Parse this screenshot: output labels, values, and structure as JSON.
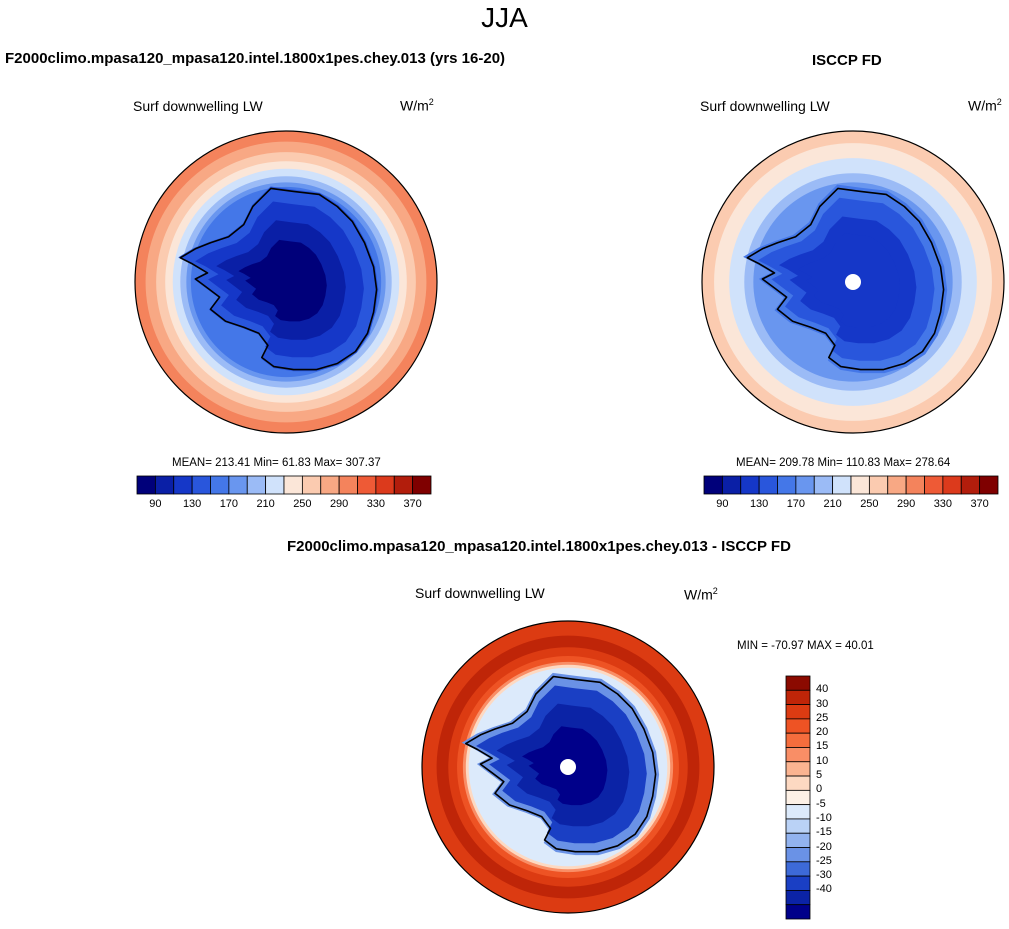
{
  "figure": {
    "title": "JJA",
    "units_base": "W/m",
    "units_sup": "2"
  },
  "chart_data": [
    {
      "type": "heatmap",
      "projection": "south polar stereographic",
      "case_title": "F2000climo.mpasa120_mpasa120.intel.1800x1pes.chey.013 (yrs 16-20)",
      "variable": "Surf downwelling LW",
      "units": "W/m2",
      "stats": {
        "mean": 213.41,
        "min": 61.83,
        "max": 307.37
      },
      "stats_text": "MEAN= 213.41  Min=  61.83  Max= 307.37",
      "levels": [
        80,
        100,
        120,
        140,
        160,
        180,
        200,
        220,
        240,
        260,
        280,
        300,
        320,
        340,
        360,
        380
      ],
      "tick_labels": [
        "90",
        "130",
        "170",
        "210",
        "250",
        "290",
        "330",
        "370"
      ],
      "colors": [
        "#00007a",
        "#0a1fa6",
        "#1537c8",
        "#2956dc",
        "#4477e8",
        "#6996ef",
        "#9bbbf6",
        "#d0e2fb",
        "#fbe6d8",
        "#fbcbb0",
        "#f8a884",
        "#f4835c",
        "#ee5a36",
        "#dc3a1c",
        "#b21d0c",
        "#7f0000"
      ],
      "pole_masked": false
    },
    {
      "type": "heatmap",
      "projection": "south polar stereographic",
      "case_title": "ISCCP FD",
      "variable": "Surf downwelling LW",
      "units": "W/m2",
      "stats": {
        "mean": 209.78,
        "min": 110.83,
        "max": 278.64
      },
      "stats_text": "MEAN= 209.78  Min= 110.83  Max= 278.64",
      "levels": [
        80,
        100,
        120,
        140,
        160,
        180,
        200,
        220,
        240,
        260,
        280,
        300,
        320,
        340,
        360,
        380
      ],
      "tick_labels": [
        "90",
        "130",
        "170",
        "210",
        "250",
        "290",
        "330",
        "370"
      ],
      "colors": [
        "#00007a",
        "#0a1fa6",
        "#1537c8",
        "#2956dc",
        "#4477e8",
        "#6996ef",
        "#9bbbf6",
        "#d0e2fb",
        "#fbe6d8",
        "#fbcbb0",
        "#f8a884",
        "#f4835c",
        "#ee5a36",
        "#dc3a1c",
        "#b21d0c",
        "#7f0000"
      ],
      "pole_masked": true
    },
    {
      "type": "heatmap",
      "projection": "south polar stereographic",
      "case_title": "F2000climo.mpasa120_mpasa120.intel.1800x1pes.chey.013 - ISCCP FD",
      "variable": "Surf downwelling LW",
      "units": "W/m2",
      "stats": {
        "min": -70.97,
        "max": 40.01
      },
      "stats_text": "MIN = -70.97 MAX =  40.01",
      "levels": [
        -40,
        -30,
        -25,
        -20,
        -15,
        -10,
        -5,
        0,
        5,
        10,
        15,
        20,
        25,
        30,
        40
      ],
      "tick_labels": [
        "40",
        "30",
        "25",
        "20",
        "15",
        "10",
        "5",
        "0",
        "-5",
        "-10",
        "-15",
        "-20",
        "-25",
        "-30",
        "-40"
      ],
      "colors_top_to_bottom": [
        "#8b0a00",
        "#bf2508",
        "#dc3b12",
        "#ee5324",
        "#f56d3d",
        "#f98e66",
        "#fbb491",
        "#fdd9c2",
        "#fdf1e6",
        "#dceafb",
        "#bad2f6",
        "#92b3ef",
        "#6a92e6",
        "#3d6ad8",
        "#1a3fc4",
        "#0b23a6",
        "#00008a"
      ],
      "pole_masked": true
    }
  ]
}
